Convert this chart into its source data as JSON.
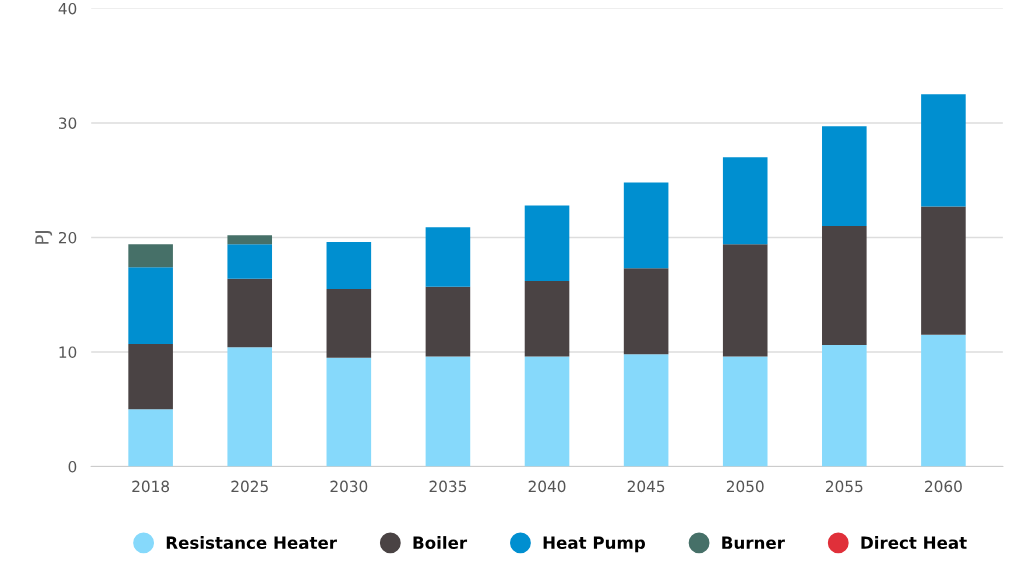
{
  "chart_data": {
    "type": "bar",
    "stacked": true,
    "ylabel": "PJ",
    "categories": [
      "2018",
      "2025",
      "2030",
      "2035",
      "2040",
      "2045",
      "2050",
      "2055",
      "2060"
    ],
    "series": [
      {
        "name": "Resistance Heater",
        "color": "#86d9fb",
        "values": [
          5.0,
          10.4,
          9.5,
          9.6,
          9.6,
          9.8,
          9.6,
          10.6,
          11.5
        ]
      },
      {
        "name": "Boiler",
        "color": "#4a4344",
        "values": [
          5.7,
          6.0,
          6.0,
          6.1,
          6.6,
          7.5,
          9.8,
          10.4,
          11.2
        ]
      },
      {
        "name": "Heat Pump",
        "color": "#008fd0",
        "values": [
          6.7,
          3.0,
          4.1,
          5.2,
          6.6,
          7.5,
          7.6,
          8.7,
          9.8
        ]
      },
      {
        "name": "Burner",
        "color": "#467068",
        "values": [
          2.0,
          0.8,
          0,
          0,
          0,
          0,
          0,
          0,
          0
        ]
      },
      {
        "name": "Direct Heat",
        "color": "#e0303a",
        "values": [
          0,
          0,
          0,
          0,
          0,
          0,
          0,
          0,
          0
        ]
      }
    ],
    "ylim": [
      0,
      40
    ],
    "yticks": [
      0,
      10,
      20,
      30,
      40
    ],
    "grid": "y",
    "legend": "bottom"
  }
}
